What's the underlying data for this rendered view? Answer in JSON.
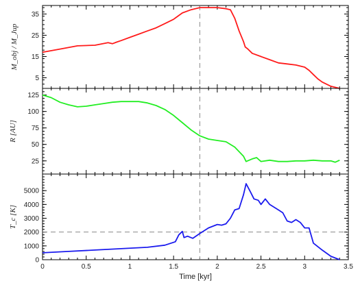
{
  "chart_data": {
    "type": "line",
    "xlabel": "Time [kyr]",
    "xlim": [
      0,
      3.5
    ],
    "x_ticks": [
      0,
      0.5,
      1,
      1.5,
      2,
      2.5,
      3,
      3.5
    ],
    "x_tick_labels": [
      "0",
      "0.5",
      "1",
      "1.5",
      "2",
      "2.5",
      "3",
      "3.5"
    ],
    "vertical_marker": {
      "x": 1.8,
      "style": "dashed",
      "color": "#888888"
    },
    "panels": [
      {
        "ylabel": "M_obj / M_Jup",
        "ylim": [
          0,
          39
        ],
        "y_ticks": [
          5,
          15,
          25,
          35
        ],
        "y_tick_labels": [
          "5",
          "15",
          "25",
          "35"
        ],
        "color": "#ff1a1a",
        "series": [
          {
            "x": [
              0,
              0.2,
              0.4,
              0.6,
              0.75,
              0.8,
              0.85,
              0.9,
              1.0,
              1.1,
              1.2,
              1.3,
              1.4,
              1.5,
              1.6,
              1.7,
              1.8,
              1.9,
              2.0,
              2.1,
              2.15,
              2.2,
              2.25,
              2.3,
              2.32,
              2.35,
              2.4,
              2.5,
              2.6,
              2.7,
              2.8,
              2.9,
              3.0,
              3.05,
              3.1,
              3.15,
              3.2,
              3.3,
              3.4
            ],
            "y": [
              17,
              18.5,
              20,
              20.3,
              21.5,
              21,
              21.8,
              22.5,
              24,
              25.5,
              27,
              28.5,
              30.5,
              32.5,
              35.5,
              37,
              38,
              38,
              38,
              37.5,
              37,
              33,
              27,
              22,
              19.5,
              18.5,
              16.5,
              15,
              13.5,
              12,
              11.5,
              11,
              10,
              8.5,
              6.5,
              4.5,
              3,
              1,
              0
            ]
          }
        ]
      },
      {
        "ylabel": "R [AU]",
        "ylim": [
          5,
          135
        ],
        "y_ticks": [
          25,
          50,
          75,
          100,
          125
        ],
        "y_tick_labels": [
          "25",
          "50",
          "75",
          "100",
          "125"
        ],
        "color": "#22ee22",
        "series": [
          {
            "x": [
              0,
              0.1,
              0.2,
              0.3,
              0.4,
              0.5,
              0.6,
              0.7,
              0.8,
              0.9,
              1.0,
              1.1,
              1.2,
              1.3,
              1.4,
              1.5,
              1.6,
              1.7,
              1.8,
              1.9,
              2.0,
              2.1,
              2.2,
              2.3,
              2.33,
              2.4,
              2.45,
              2.5,
              2.6,
              2.7,
              2.8,
              2.9,
              3.0,
              3.1,
              3.2,
              3.3,
              3.35,
              3.4
            ],
            "y": [
              125,
              121,
              114,
              110,
              107,
              108,
              110,
              112,
              114,
              115,
              115,
              115,
              113,
              109,
              103,
              94,
              83,
              72,
              63,
              58,
              56,
              54,
              46,
              32,
              24,
              28,
              30,
              24,
              26,
              24,
              24,
              25,
              25,
              26,
              25,
              25,
              23,
              26
            ]
          }
        ]
      },
      {
        "ylabel": "T_c [K]",
        "ylim": [
          0,
          6200
        ],
        "y_ticks": [
          0,
          1000,
          2000,
          3000,
          4000,
          5000
        ],
        "y_tick_labels": [
          "0",
          "1000",
          "2000",
          "3000",
          "4000",
          "5000"
        ],
        "color": "#1a1aee",
        "hline": {
          "y": 2000,
          "style": "dashed",
          "color": "#888888"
        },
        "series": [
          {
            "x": [
              0,
              0.3,
              0.6,
              0.9,
              1.2,
              1.4,
              1.52,
              1.56,
              1.6,
              1.62,
              1.66,
              1.72,
              1.8,
              1.9,
              2.0,
              2.05,
              2.1,
              2.15,
              2.2,
              2.25,
              2.3,
              2.33,
              2.38,
              2.42,
              2.47,
              2.5,
              2.55,
              2.6,
              2.65,
              2.7,
              2.75,
              2.8,
              2.85,
              2.9,
              2.95,
              3.0,
              3.05,
              3.1,
              3.2,
              3.3,
              3.4
            ],
            "y": [
              500,
              600,
              700,
              800,
              900,
              1050,
              1300,
              1800,
              2050,
              1600,
              1700,
              1550,
              1900,
              2300,
              2550,
              2500,
              2600,
              3000,
              3600,
              3700,
              4700,
              5500,
              4900,
              4400,
              4300,
              4000,
              4400,
              4000,
              3800,
              3600,
              3400,
              2800,
              2700,
              2900,
              2700,
              2300,
              2300,
              1200,
              700,
              250,
              0
            ]
          }
        ]
      }
    ]
  }
}
